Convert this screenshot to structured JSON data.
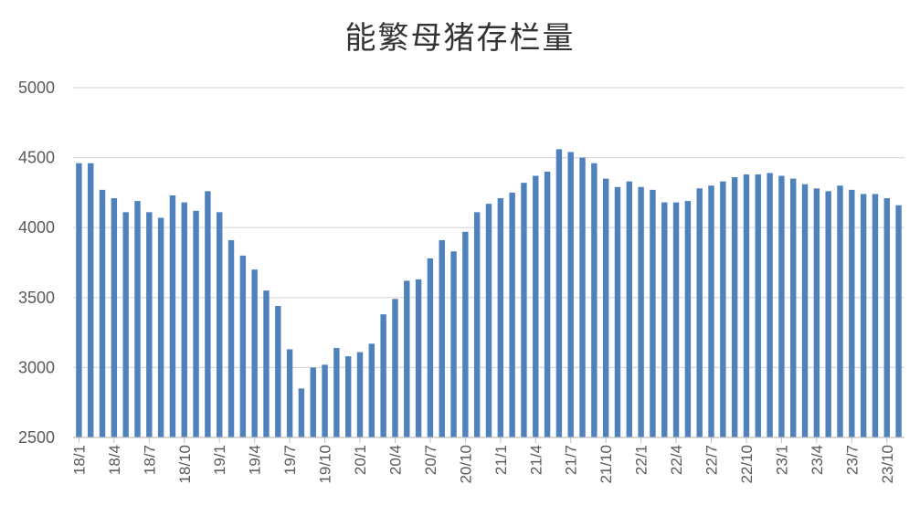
{
  "chart_data": {
    "type": "bar",
    "title": "能繁母猪存栏量",
    "xlabel": "",
    "ylabel": "",
    "ylim": [
      2500,
      5000
    ],
    "yticks": [
      2500,
      3000,
      3500,
      4000,
      4500,
      5000
    ],
    "grid": true,
    "legend": "none",
    "bar_color": "#4F81BD",
    "categories": [
      "18/1",
      "18/2",
      "18/3",
      "18/4",
      "18/5",
      "18/6",
      "18/7",
      "18/8",
      "18/9",
      "18/10",
      "18/11",
      "18/12",
      "19/1",
      "19/2",
      "19/3",
      "19/4",
      "19/5",
      "19/6",
      "19/7",
      "19/8",
      "19/9",
      "19/10",
      "19/11",
      "19/12",
      "20/1",
      "20/2",
      "20/3",
      "20/4",
      "20/5",
      "20/6",
      "20/7",
      "20/8",
      "20/9",
      "20/10",
      "20/11",
      "20/12",
      "21/1",
      "21/2",
      "21/3",
      "21/4",
      "21/5",
      "21/6",
      "21/7",
      "21/8",
      "21/9",
      "21/10",
      "21/11",
      "21/12",
      "22/1",
      "22/2",
      "22/3",
      "22/4",
      "22/5",
      "22/6",
      "22/7",
      "22/8",
      "22/9",
      "22/10",
      "22/11",
      "22/12",
      "23/1",
      "23/2",
      "23/3",
      "23/4",
      "23/5",
      "23/6",
      "23/7",
      "23/8",
      "23/9",
      "23/10",
      "23/11"
    ],
    "tick_labels": [
      "18/1",
      "18/4",
      "18/7",
      "18/10",
      "19/1",
      "19/4",
      "19/7",
      "19/10",
      "20/1",
      "20/4",
      "20/7",
      "20/10",
      "21/1",
      "21/4",
      "21/7",
      "21/10",
      "22/1",
      "22/4",
      "22/7",
      "22/10",
      "23/1",
      "23/4",
      "23/7",
      "23/10"
    ],
    "values": [
      4460,
      4460,
      4270,
      4210,
      4110,
      4190,
      4110,
      4070,
      4230,
      4180,
      4120,
      4260,
      4110,
      3910,
      3800,
      3700,
      3550,
      3440,
      3130,
      2850,
      3000,
      3020,
      3140,
      3080,
      3110,
      3170,
      3380,
      3490,
      3620,
      3630,
      3780,
      3910,
      3830,
      3970,
      4110,
      4170,
      4210,
      4250,
      4320,
      4370,
      4400,
      4560,
      4540,
      4500,
      4460,
      4350,
      4290,
      4330,
      4290,
      4270,
      4180,
      4180,
      4190,
      4280,
      4300,
      4330,
      4360,
      4380,
      4380,
      4390,
      4370,
      4350,
      4310,
      4280,
      4260,
      4300,
      4270,
      4240,
      4240,
      4210,
      4160
    ]
  }
}
